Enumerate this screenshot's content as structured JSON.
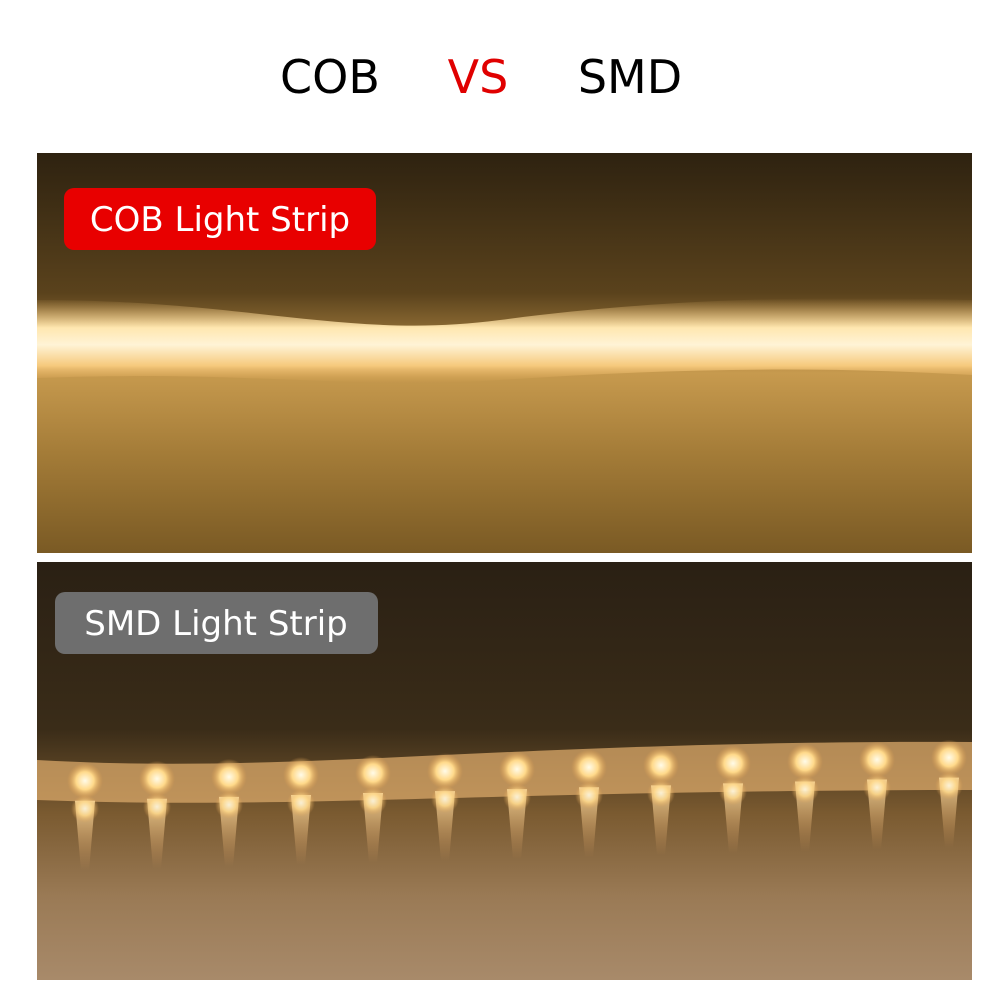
{
  "header": {
    "left": "COB",
    "middle": "VS",
    "right": "SMD"
  },
  "panels": [
    {
      "label": "COB Light Strip"
    },
    {
      "label": "SMD Light Strip"
    }
  ]
}
